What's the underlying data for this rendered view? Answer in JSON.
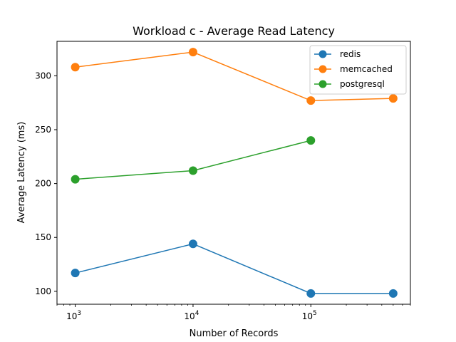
{
  "chart_data": {
    "type": "line",
    "title": "Workload c - Average Read Latency",
    "xlabel": "Number of Records",
    "ylabel": "Average Latency (ms)",
    "xscale": "log",
    "xlim": [
      700,
      700000
    ],
    "ylim": [
      88,
      332
    ],
    "yticks": [
      100,
      150,
      200,
      250,
      300
    ],
    "xticks": [
      {
        "value": 1000,
        "base": "10",
        "exp": "3"
      },
      {
        "value": 10000,
        "base": "10",
        "exp": "4"
      },
      {
        "value": 100000,
        "base": "10",
        "exp": "5"
      }
    ],
    "grid": false,
    "legend_position": "top-right",
    "series": [
      {
        "name": "redis",
        "color": "#1f77b4",
        "x": [
          1000,
          10000,
          100000,
          500000
        ],
        "y": [
          117,
          144,
          98,
          98
        ]
      },
      {
        "name": "memcached",
        "color": "#ff7f0e",
        "x": [
          1000,
          10000,
          100000,
          500000
        ],
        "y": [
          308,
          322,
          277,
          279
        ]
      },
      {
        "name": "postgresql",
        "color": "#2ca02c",
        "x": [
          1000,
          10000,
          100000
        ],
        "y": [
          204,
          212,
          240
        ]
      }
    ]
  }
}
